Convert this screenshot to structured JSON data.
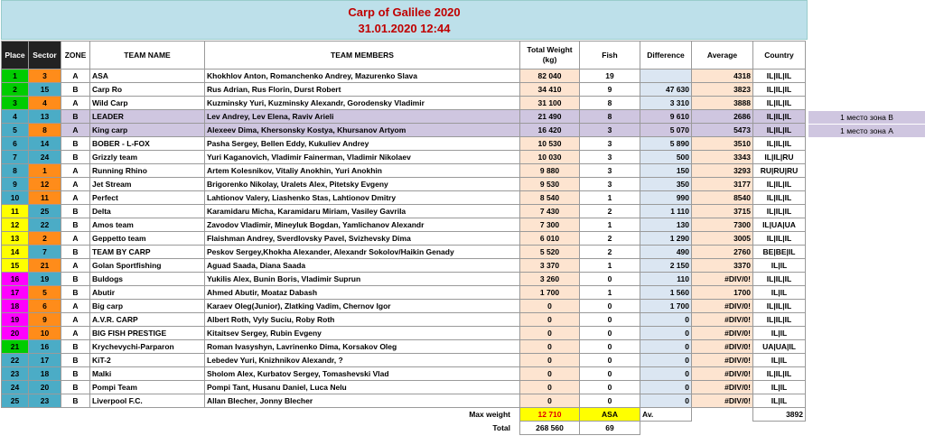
{
  "title": "Carp of Galilee 2020",
  "datetime": "31.01.2020 12:44",
  "headers": {
    "place": "Place",
    "sector": "Sector",
    "zone": "ZONE",
    "team": "TEAM NAME",
    "members": "TEAM MEMBERS",
    "weight": "Total Weight (kg)",
    "fish": "Fish",
    "difference": "Difference",
    "average": "Average",
    "country": "Country"
  },
  "rows": [
    {
      "place": "1",
      "sector": "3",
      "zone": "A",
      "team": "ASA",
      "members": "Khokhlov Anton, Romanchenko Andrey, Mazurenko Slava",
      "weight": "82 040",
      "fish": "19",
      "difference": "",
      "average": "4318",
      "country": "IL|IL|IL",
      "pcolor": "#00cc00",
      "scolor": "#ff8c1a"
    },
    {
      "place": "2",
      "sector": "15",
      "zone": "B",
      "team": "Carp Ro",
      "members": "Rus Adrian, Rus Florin, Durst Robert",
      "weight": "34 410",
      "fish": "9",
      "difference": "47 630",
      "average": "3823",
      "country": "IL|IL|IL",
      "pcolor": "#00cc00",
      "scolor": "#4bacc6"
    },
    {
      "place": "3",
      "sector": "4",
      "zone": "A",
      "team": "Wild Carp",
      "members": "Kuzminsky Yuri, Kuzminsky Alexandr, Gorodensky Vladimir",
      "weight": "31 100",
      "fish": "8",
      "difference": "3 310",
      "average": "3888",
      "country": "IL|IL|IL",
      "pcolor": "#00cc00",
      "scolor": "#ff8c1a"
    },
    {
      "place": "4",
      "sector": "13",
      "zone": "B",
      "team": "LEADER",
      "members": "Lev Andrey, Lev Elena, Raviv Arieli",
      "weight": "21 490",
      "fish": "8",
      "difference": "9 610",
      "average": "2686",
      "country": "IL|IL|IL",
      "pcolor": "#4bacc6",
      "scolor": "#4bacc6"
    },
    {
      "place": "5",
      "sector": "8",
      "zone": "A",
      "team": "King carp",
      "members": "Alexeev Dima, Khersonsky Kostya, Khursanov Artyom",
      "weight": "16 420",
      "fish": "3",
      "difference": "5 070",
      "average": "5473",
      "country": "IL|IL|IL",
      "pcolor": "#4bacc6",
      "scolor": "#ff8c1a"
    },
    {
      "place": "6",
      "sector": "14",
      "zone": "B",
      "team": "BOBER - L-FOX",
      "members": "Pasha Sergey, Bellen Eddy, Kukuliev Andrey",
      "weight": "10 530",
      "fish": "3",
      "difference": "5 890",
      "average": "3510",
      "country": "IL|IL|IL",
      "pcolor": "#4bacc6",
      "scolor": "#4bacc6"
    },
    {
      "place": "7",
      "sector": "24",
      "zone": "B",
      "team": "Grizzly team",
      "members": "Yuri Kaganovich, Vladimir Fainerman, Vladimir Nikolaev",
      "weight": "10 030",
      "fish": "3",
      "difference": "500",
      "average": "3343",
      "country": "IL|IL|RU",
      "pcolor": "#4bacc6",
      "scolor": "#4bacc6"
    },
    {
      "place": "8",
      "sector": "1",
      "zone": "A",
      "team": "Running Rhino",
      "members": "Artem Kolesnikov, Vitaliy Anokhin, Yuri Anokhin",
      "weight": "9 880",
      "fish": "3",
      "difference": "150",
      "average": "3293",
      "country": "RU|RU|RU",
      "pcolor": "#4bacc6",
      "scolor": "#ff8c1a"
    },
    {
      "place": "9",
      "sector": "12",
      "zone": "A",
      "team": "Jet Stream",
      "members": "Brigorenko Nikolay, Uralets Alex, Pitetsky Evgeny",
      "weight": "9 530",
      "fish": "3",
      "difference": "350",
      "average": "3177",
      "country": "IL|IL|IL",
      "pcolor": "#4bacc6",
      "scolor": "#ff8c1a"
    },
    {
      "place": "10",
      "sector": "11",
      "zone": "A",
      "team": "Perfect",
      "members": "Lahtionov Valery, Liashenko Stas, Lahtionov Dmitry",
      "weight": "8 540",
      "fish": "1",
      "difference": "990",
      "average": "8540",
      "country": "IL|IL|IL",
      "pcolor": "#4bacc6",
      "scolor": "#ff8c1a"
    },
    {
      "place": "11",
      "sector": "25",
      "zone": "B",
      "team": "Delta",
      "members": "Karamidaru Micha, Karamidaru Miriam, Vasiley Gavrila",
      "weight": "7 430",
      "fish": "2",
      "difference": "1 110",
      "average": "3715",
      "country": "IL|IL|IL",
      "pcolor": "#ffff00",
      "scolor": "#4bacc6"
    },
    {
      "place": "12",
      "sector": "22",
      "zone": "B",
      "team": "Amos team",
      "members": "Zavodov Vladimir, Mineyluk Bogdan, Yamlichanov Alexandr",
      "weight": "7 300",
      "fish": "1",
      "difference": "130",
      "average": "7300",
      "country": "IL|UA|UA",
      "pcolor": "#ffff00",
      "scolor": "#4bacc6"
    },
    {
      "place": "13",
      "sector": "2",
      "zone": "A",
      "team": "Geppetto team",
      "members": "Flaishman Andrey, Sverdlovsky Pavel, Svizhevsky Dima",
      "weight": "6 010",
      "fish": "2",
      "difference": "1 290",
      "average": "3005",
      "country": "IL|IL|IL",
      "pcolor": "#ffff00",
      "scolor": "#ff8c1a"
    },
    {
      "place": "14",
      "sector": "7",
      "zone": "B",
      "team": "TEAM BY CARP",
      "members": "Peskov Sergey,Khokha Alexander, Alexandr Sokolov/Haikin Genady",
      "weight": "5 520",
      "fish": "2",
      "difference": "490",
      "average": "2760",
      "country": "BE|BE|IL",
      "pcolor": "#ffff00",
      "scolor": "#4bacc6"
    },
    {
      "place": "15",
      "sector": "21",
      "zone": "A",
      "team": "Golan Sportfishing",
      "members": "Aguad Saada, Diana Saada",
      "weight": "3 370",
      "fish": "1",
      "difference": "2 150",
      "average": "3370",
      "country": "IL|IL",
      "pcolor": "#ffff00",
      "scolor": "#ff8c1a"
    },
    {
      "place": "16",
      "sector": "19",
      "zone": "B",
      "team": "Buldogs",
      "members": "Yukilis Alex, Bunin Boris, Vladimir Suprun",
      "weight": "3 260",
      "fish": "0",
      "difference": "110",
      "average": "#DIV/0!",
      "country": "IL|IL|IL",
      "pcolor": "#ff00ff",
      "scolor": "#4bacc6"
    },
    {
      "place": "17",
      "sector": "5",
      "zone": "B",
      "team": "Abutir",
      "members": "Ahmed Abutir, Moataz Dabash",
      "weight": "1 700",
      "fish": "1",
      "difference": "1 560",
      "average": "1700",
      "country": "IL|IL",
      "pcolor": "#ff00ff",
      "scolor": "#ff8c1a"
    },
    {
      "place": "18",
      "sector": "6",
      "zone": "A",
      "team": "Big carp",
      "members": "Karaev Oleg(Junior), Zlatking Vadim, Chernov Igor",
      "weight": "0",
      "fish": "0",
      "difference": "1 700",
      "average": "#DIV/0!",
      "country": "IL|IL|IL",
      "pcolor": "#ff00ff",
      "scolor": "#ff8c1a"
    },
    {
      "place": "19",
      "sector": "9",
      "zone": "A",
      "team": "A.V.R. CARP",
      "members": "Albert Roth, Vyly Suciu, Roby Roth",
      "weight": "0",
      "fish": "0",
      "difference": "0",
      "average": "#DIV/0!",
      "country": "IL|IL|IL",
      "pcolor": "#ff00ff",
      "scolor": "#ff8c1a"
    },
    {
      "place": "20",
      "sector": "10",
      "zone": "A",
      "team": "BIG FISH PRESTIGE",
      "members": "Kitaitsev Sergey, Rubin Evgeny",
      "weight": "0",
      "fish": "0",
      "difference": "0",
      "average": "#DIV/0!",
      "country": "IL|IL",
      "pcolor": "#ff00ff",
      "scolor": "#ff8c1a"
    },
    {
      "place": "21",
      "sector": "16",
      "zone": "B",
      "team": "Krychevychi-Parparon",
      "members": "Roman Ivasyshyn, Lavrinenko Dima, Korsakov Oleg",
      "weight": "0",
      "fish": "0",
      "difference": "0",
      "average": "#DIV/0!",
      "country": "UA|UA|IL",
      "pcolor": "#00cc00",
      "scolor": "#4bacc6"
    },
    {
      "place": "22",
      "sector": "17",
      "zone": "B",
      "team": "KiT-2",
      "members": "Lebedev Yuri, Knizhnikov Alexandr, ?",
      "weight": "0",
      "fish": "0",
      "difference": "0",
      "average": "#DIV/0!",
      "country": "IL|IL",
      "pcolor": "#4bacc6",
      "scolor": "#4bacc6"
    },
    {
      "place": "23",
      "sector": "18",
      "zone": "B",
      "team": "Malki",
      "members": "Sholom Alex, Kurbatov Sergey, Tomashevski Vlad",
      "weight": "0",
      "fish": "0",
      "difference": "0",
      "average": "#DIV/0!",
      "country": "IL|IL|IL",
      "pcolor": "#4bacc6",
      "scolor": "#4bacc6"
    },
    {
      "place": "24",
      "sector": "20",
      "zone": "B",
      "team": "Pompi Team",
      "members": "Pompi Tant, Husanu Daniel, Luca Nelu",
      "weight": "0",
      "fish": "0",
      "difference": "0",
      "average": "#DIV/0!",
      "country": "IL|IL",
      "pcolor": "#4bacc6",
      "scolor": "#4bacc6"
    },
    {
      "place": "25",
      "sector": "23",
      "zone": "B",
      "team": "Liverpool F.C.",
      "members": "Allan Blecher, Jonny Blecher",
      "weight": "0",
      "fish": "0",
      "difference": "0",
      "average": "#DIV/0!",
      "country": "IL|IL",
      "pcolor": "#4bacc6",
      "scolor": "#4bacc6"
    }
  ],
  "notes": {
    "zone_b": "1 место зона B",
    "zone_a": "1 место зона A"
  },
  "footer": {
    "max_weight_label": "Max weight",
    "max_weight_value": "12 710",
    "max_weight_team": "ASA",
    "avg_label": "Av.",
    "avg_value": "3892",
    "total_label": "Total",
    "total_weight": "268 560",
    "total_fish": "69"
  },
  "colors": {
    "title_bg": "#bde0ea",
    "title_text": "#c00000",
    "weight_bg": "#fde4d0",
    "difference_bg": "#dbe6f2",
    "highlight_row": "#cfc6e0",
    "header_dark": "#222222"
  }
}
